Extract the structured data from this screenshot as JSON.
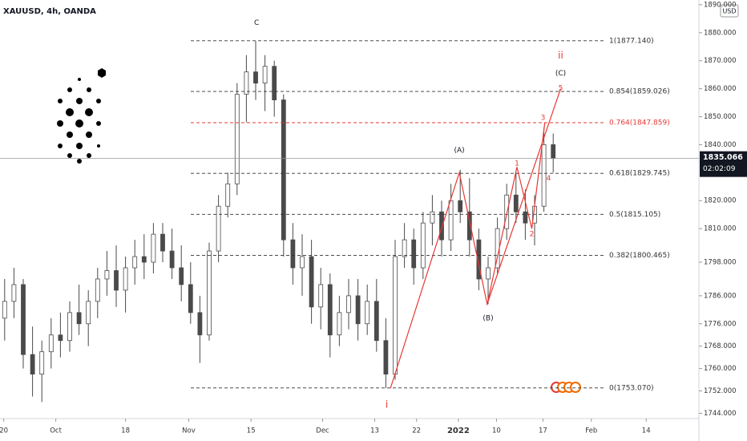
{
  "chart_data": {
    "type": "candlestick",
    "title": "XAUUSD, 4h, OANDA",
    "currency": "USD",
    "last_price": {
      "value": 1835.066,
      "label": "1835.066"
    },
    "countdown": "02:02:09",
    "ylim": [
      1742.7,
      1891.7
    ],
    "xlim": [
      0,
      75
    ],
    "yticks": [
      {
        "value": 1890,
        "label": "1890.000"
      },
      {
        "value": 1880,
        "label": "1880.000"
      },
      {
        "value": 1870,
        "label": "1870.000"
      },
      {
        "value": 1860,
        "label": "1860.000"
      },
      {
        "value": 1850,
        "label": "1850.000"
      },
      {
        "value": 1840,
        "label": "1840.000"
      },
      {
        "value": 1820,
        "label": "1820.000"
      },
      {
        "value": 1810,
        "label": "1810.000"
      },
      {
        "value": 1798,
        "label": "1798.000"
      },
      {
        "value": 1786,
        "label": "1786.000"
      },
      {
        "value": 1776,
        "label": "1776.000"
      },
      {
        "value": 1768,
        "label": "1768.000"
      },
      {
        "value": 1760,
        "label": "1760.000"
      },
      {
        "value": 1752,
        "label": "1752.000"
      },
      {
        "value": 1744,
        "label": "1744.000"
      }
    ],
    "xticks": [
      {
        "value": 0.4,
        "label": "20"
      },
      {
        "value": 6,
        "label": "Oct"
      },
      {
        "value": 13.5,
        "label": "18"
      },
      {
        "value": 20.3,
        "label": "Nov"
      },
      {
        "value": 27,
        "label": "15"
      },
      {
        "value": 34.7,
        "label": "Dec"
      },
      {
        "value": 40.3,
        "label": "13"
      },
      {
        "value": 44.8,
        "label": "22"
      },
      {
        "value": 49.3,
        "label": "2022"
      },
      {
        "value": 53.4,
        "label": "10"
      },
      {
        "value": 58.4,
        "label": "17"
      },
      {
        "value": 63.6,
        "label": "Feb"
      },
      {
        "value": 69.5,
        "label": "14"
      }
    ],
    "color": "#4a4a4a",
    "candles": [
      [
        1778,
        1792,
        1770,
        1784
      ],
      [
        1784,
        1796,
        1778,
        1790
      ],
      [
        1790,
        1792,
        1760,
        1765
      ],
      [
        1765,
        1775,
        1750,
        1758
      ],
      [
        1758,
        1770,
        1748,
        1766
      ],
      [
        1766,
        1778,
        1760,
        1772
      ],
      [
        1772,
        1780,
        1764,
        1770
      ],
      [
        1770,
        1784,
        1766,
        1780
      ],
      [
        1780,
        1790,
        1772,
        1776
      ],
      [
        1776,
        1788,
        1768,
        1784
      ],
      [
        1784,
        1796,
        1778,
        1792
      ],
      [
        1792,
        1802,
        1786,
        1795
      ],
      [
        1795,
        1804,
        1782,
        1788
      ],
      [
        1788,
        1800,
        1780,
        1796
      ],
      [
        1796,
        1806,
        1790,
        1800
      ],
      [
        1800,
        1808,
        1792,
        1798
      ],
      [
        1798,
        1812,
        1794,
        1808
      ],
      [
        1808,
        1812,
        1798,
        1802
      ],
      [
        1802,
        1810,
        1792,
        1796
      ],
      [
        1796,
        1804,
        1784,
        1790
      ],
      [
        1790,
        1798,
        1776,
        1780
      ],
      [
        1780,
        1786,
        1762,
        1772
      ],
      [
        1772,
        1805,
        1770,
        1802
      ],
      [
        1802,
        1822,
        1798,
        1818
      ],
      [
        1818,
        1830,
        1814,
        1826
      ],
      [
        1826,
        1862,
        1822,
        1858
      ],
      [
        1858,
        1872,
        1848,
        1866
      ],
      [
        1866,
        1877,
        1856,
        1862
      ],
      [
        1862,
        1872,
        1852,
        1868
      ],
      [
        1868,
        1870,
        1850,
        1856
      ],
      [
        1856,
        1858,
        1800,
        1806
      ],
      [
        1806,
        1812,
        1790,
        1796
      ],
      [
        1796,
        1808,
        1786,
        1800
      ],
      [
        1800,
        1806,
        1776,
        1782
      ],
      [
        1782,
        1796,
        1774,
        1790
      ],
      [
        1790,
        1794,
        1764,
        1772
      ],
      [
        1772,
        1786,
        1768,
        1780
      ],
      [
        1780,
        1792,
        1774,
        1786
      ],
      [
        1786,
        1792,
        1770,
        1776
      ],
      [
        1776,
        1790,
        1772,
        1784
      ],
      [
        1784,
        1792,
        1766,
        1770
      ],
      [
        1770,
        1778,
        1753,
        1758
      ],
      [
        1758,
        1806,
        1756,
        1800
      ],
      [
        1800,
        1812,
        1796,
        1806
      ],
      [
        1806,
        1810,
        1790,
        1796
      ],
      [
        1796,
        1816,
        1792,
        1812
      ],
      [
        1812,
        1822,
        1804,
        1816
      ],
      [
        1816,
        1820,
        1800,
        1806
      ],
      [
        1806,
        1826,
        1802,
        1820
      ],
      [
        1820,
        1831,
        1812,
        1816
      ],
      [
        1816,
        1828,
        1800,
        1806
      ],
      [
        1806,
        1810,
        1788,
        1792
      ],
      [
        1792,
        1800,
        1783,
        1796
      ],
      [
        1796,
        1814,
        1794,
        1810
      ],
      [
        1810,
        1826,
        1806,
        1822
      ],
      [
        1822,
        1830,
        1812,
        1816
      ],
      [
        1816,
        1824,
        1806,
        1812
      ],
      [
        1812,
        1822,
        1804,
        1818
      ],
      [
        1818,
        1846,
        1816,
        1840
      ],
      [
        1840,
        1844,
        1830,
        1835.066
      ]
    ],
    "fib_levels": [
      {
        "label": "1(1877.140)",
        "value": 1877.14,
        "color": "#333333"
      },
      {
        "label": "0.854(1859.026)",
        "value": 1859.026,
        "color": "#333333"
      },
      {
        "label": "0.764(1847.859)",
        "value": 1847.859,
        "color": "#e53935"
      },
      {
        "label": "0.618(1829.745)",
        "value": 1829.745,
        "color": "#333333"
      },
      {
        "label": "0.5(1815.105)",
        "value": 1815.105,
        "color": "#333333"
      },
      {
        "label": "0.382(1800.465)",
        "value": 1800.465,
        "color": "#333333"
      },
      {
        "label": "0(1753.070)",
        "value": 1753.07,
        "color": "#333333"
      }
    ],
    "waves": [
      {
        "color": "#e53935",
        "x": [
          42,
          49.4,
          52.4,
          60.3
        ],
        "values": [
          1753,
          1830,
          1783,
          1860
        ]
      },
      {
        "color": "#e53935",
        "x": [
          52.4,
          55.6,
          57.2,
          58.6
        ],
        "values": [
          1783,
          1832,
          1810,
          1848
        ]
      }
    ],
    "annotations": [
      {
        "text": "C",
        "x": 27.6,
        "y": 1883.5,
        "color": "#131722"
      },
      {
        "text": "(A)",
        "x": 49.4,
        "y": 1838,
        "color": "#131722"
      },
      {
        "text": "(B)",
        "x": 52.5,
        "y": 1778,
        "color": "#131722"
      },
      {
        "text": "(C)",
        "x": 60.3,
        "y": 1865.5,
        "color": "#131722"
      },
      {
        "text": "ii",
        "x": 60.3,
        "y": 1871.8,
        "color": "#e53935"
      },
      {
        "text": "i",
        "x": 41.6,
        "y": 1747,
        "color": "#e53935"
      },
      {
        "text": "1",
        "x": 55.6,
        "y": 1833.2,
        "color": "#e53935"
      },
      {
        "text": "2",
        "x": 57.2,
        "y": 1808,
        "color": "#e53935"
      },
      {
        "text": "3",
        "x": 58.4,
        "y": 1849.6,
        "color": "#e53935"
      },
      {
        "text": "4",
        "x": 59,
        "y": 1828,
        "color": "#e53935"
      },
      {
        "text": "5",
        "x": 60.3,
        "y": 1860.2,
        "color": "#e53935"
      }
    ]
  }
}
